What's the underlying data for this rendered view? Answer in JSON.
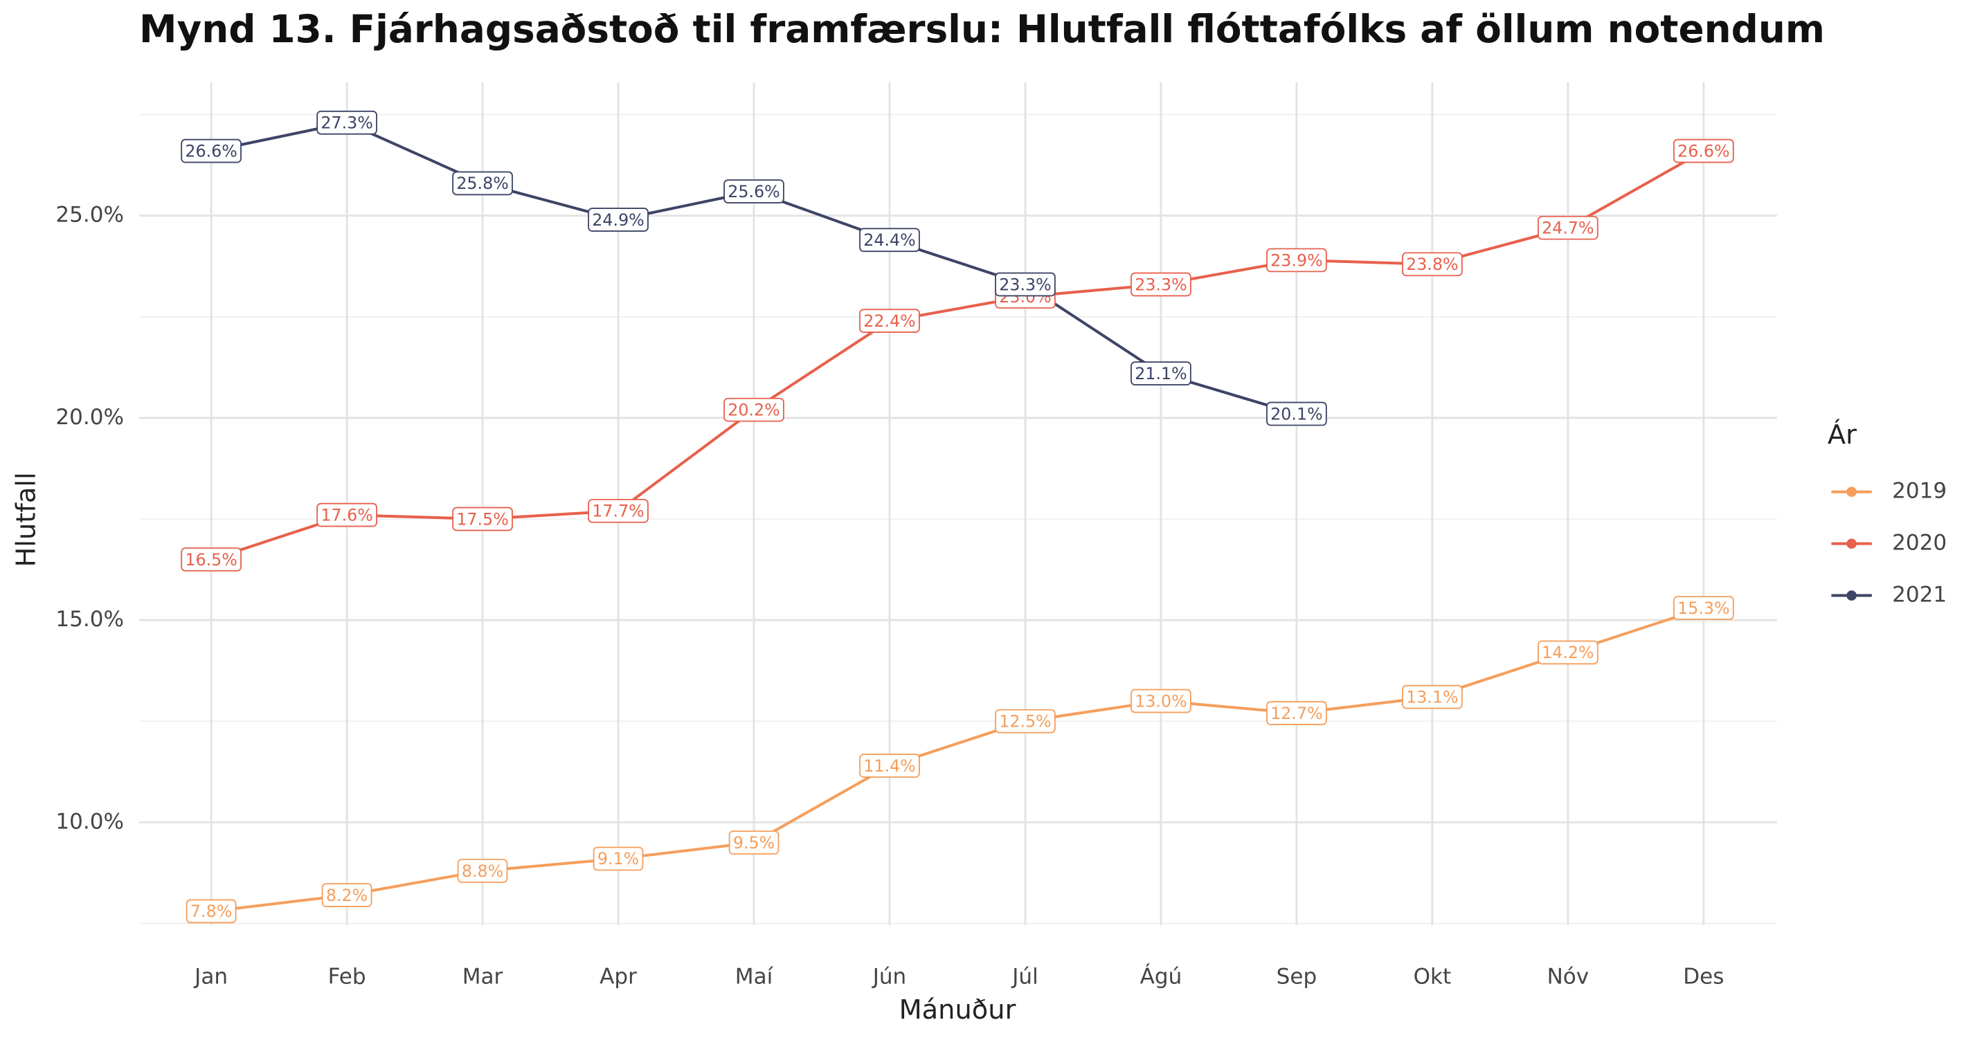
{
  "chart_data": {
    "type": "line",
    "title": "Mynd 13. Fjárhagsaðstoð til framfærslu: Hlutfall flóttafólks af öllum notendum",
    "x_label": "Mánuður",
    "y_label": "Hlutfall",
    "legend_title": "Ár",
    "legend": "right",
    "grid": true,
    "categories": [
      "Jan",
      "Feb",
      "Mar",
      "Apr",
      "Maí",
      "Jún",
      "Júl",
      "Ágú",
      "Sep",
      "Okt",
      "Nóv",
      "Des"
    ],
    "ylim": [
      7.45,
      28.3
    ],
    "yticks": [
      {
        "value": 10,
        "label": "10.0%"
      },
      {
        "value": 15,
        "label": "15.0%"
      },
      {
        "value": 20,
        "label": "20.0%"
      },
      {
        "value": 25,
        "label": "25.0%"
      }
    ],
    "minor_yticks": [
      7.5,
      12.5,
      17.5,
      22.5,
      27.5
    ],
    "series": [
      {
        "name": "2019",
        "color": "#f59e5b",
        "values": [
          7.8,
          8.2,
          8.8,
          9.1,
          9.5,
          11.4,
          12.5,
          13.0,
          12.7,
          13.1,
          14.2,
          15.3
        ],
        "value_labels": [
          "7.8%",
          "8.2%",
          "8.8%",
          "9.1%",
          "9.5%",
          "11.4%",
          "12.5%",
          "13.0%",
          "12.7%",
          "13.1%",
          "14.2%",
          "15.3%"
        ]
      },
      {
        "name": "2020",
        "color": "#e8604c",
        "values": [
          16.5,
          17.6,
          17.5,
          17.7,
          20.2,
          22.4,
          23.0,
          23.3,
          23.9,
          23.8,
          24.7,
          26.6
        ],
        "value_labels": [
          "16.5%",
          "17.6%",
          "17.5%",
          "17.7%",
          "20.2%",
          "22.4%",
          "23.0%",
          "23.3%",
          "23.9%",
          "23.8%",
          "24.7%",
          "26.6%"
        ]
      },
      {
        "name": "2021",
        "color": "#3d4466",
        "values": [
          26.6,
          27.3,
          25.8,
          24.9,
          25.6,
          24.4,
          23.3,
          21.1,
          20.1,
          null,
          null,
          null
        ],
        "value_labels": [
          "26.6%",
          "27.3%",
          "25.8%",
          "24.9%",
          "25.6%",
          "24.4%",
          "23.3%",
          "21.1%",
          "20.1%",
          null,
          null,
          null
        ]
      }
    ]
  }
}
